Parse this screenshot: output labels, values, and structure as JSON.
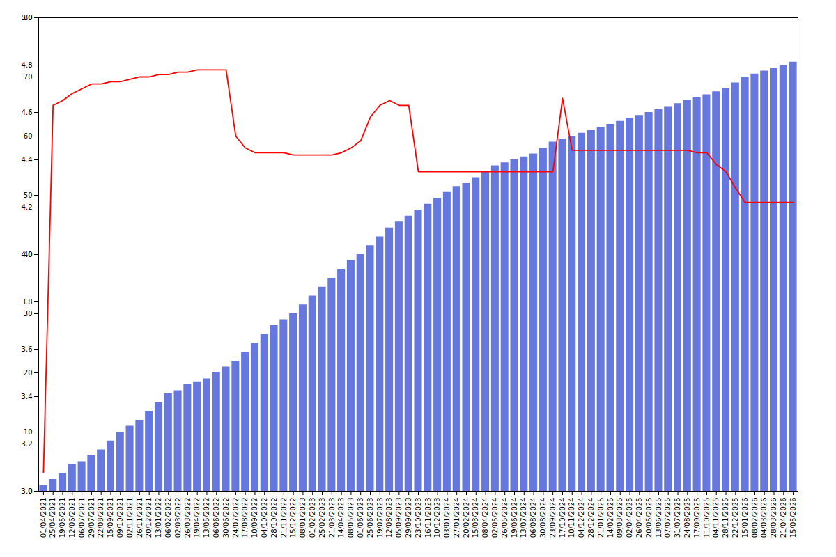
{
  "chart_data": {
    "type": "bar",
    "categories": [
      "01/04/2021",
      "25/04/2021",
      "19/05/2021",
      "12/06/2021",
      "06/07/2021",
      "29/07/2021",
      "22/08/2021",
      "15/09/2021",
      "09/10/2021",
      "02/11/2021",
      "26/11/2021",
      "20/12/2021",
      "13/01/2022",
      "06/02/2022",
      "02/03/2022",
      "26/03/2022",
      "19/04/2022",
      "13/05/2022",
      "06/06/2022",
      "30/06/2022",
      "24/07/2022",
      "17/08/2022",
      "10/09/2022",
      "04/10/2022",
      "28/10/2022",
      "21/11/2022",
      "15/12/2022",
      "08/01/2023",
      "01/02/2023",
      "25/02/2023",
      "21/03/2023",
      "14/04/2023",
      "08/05/2023",
      "01/06/2023",
      "25/06/2023",
      "19/07/2023",
      "12/08/2023",
      "05/09/2023",
      "29/09/2023",
      "23/10/2023",
      "16/11/2023",
      "10/12/2023",
      "03/01/2024",
      "27/01/2024",
      "20/02/2024",
      "15/03/2024",
      "08/04/2024",
      "02/05/2024",
      "26/05/2024",
      "19/06/2024",
      "13/07/2024",
      "06/08/2024",
      "30/08/2024",
      "23/09/2024",
      "17/10/2024",
      "10/11/2024",
      "04/12/2024",
      "28/12/2024",
      "21/01/2025",
      "14/02/2025",
      "09/03/2025",
      "02/04/2025",
      "26/04/2025",
      "20/05/2025",
      "13/06/2025",
      "07/07/2025",
      "31/07/2025",
      "24/08/2025",
      "17/09/2025",
      "11/10/2025",
      "04/11/2025",
      "28/11/2025",
      "22/12/2025",
      "15/01/2026",
      "08/02/2026",
      "04/03/2026",
      "28/03/2026",
      "21/04/2026",
      "15/05/2026"
    ],
    "series": [
      {
        "type": "bar",
        "color": "#6677dd",
        "axis": "y2",
        "values": [
          1.0,
          2.0,
          3.0,
          4.5,
          5.0,
          6.0,
          7.0,
          8.5,
          10.0,
          11.0,
          12.0,
          13.5,
          15.0,
          16.5,
          17.0,
          18.0,
          18.5,
          19.0,
          20.0,
          21.0,
          22.0,
          23.5,
          25.0,
          26.5,
          28.0,
          29.0,
          30.0,
          31.5,
          33.0,
          34.5,
          36.0,
          37.5,
          39.0,
          40.0,
          41.5,
          43.0,
          44.5,
          45.5,
          46.5,
          47.5,
          48.5,
          49.5,
          50.5,
          51.5,
          52.0,
          53.0,
          54.0,
          55.0,
          55.5,
          56.0,
          56.5,
          57.0,
          58.0,
          59.0,
          59.5,
          60.0,
          60.5,
          61.0,
          61.5,
          62.0,
          62.5,
          63.0,
          63.5,
          64.0,
          64.5,
          65.0,
          65.5,
          66.0,
          66.5,
          67.0,
          67.5,
          68.0,
          69.0,
          70.0,
          70.5,
          71.0,
          71.5,
          72.0,
          72.5
        ]
      },
      {
        "type": "line",
        "color": "#ff0000",
        "values": [
          3.08,
          4.63,
          4.65,
          4.68,
          4.7,
          4.72,
          4.72,
          4.73,
          4.73,
          4.74,
          4.75,
          4.75,
          4.76,
          4.76,
          4.77,
          4.77,
          4.78,
          4.78,
          4.78,
          4.78,
          4.5,
          4.45,
          4.43,
          4.43,
          4.43,
          4.43,
          4.42,
          4.42,
          4.42,
          4.42,
          4.42,
          4.43,
          4.45,
          4.48,
          4.58,
          4.63,
          4.65,
          4.63,
          4.63,
          4.35,
          4.35,
          4.35,
          4.35,
          4.35,
          4.35,
          4.35,
          4.35,
          4.35,
          4.35,
          4.35,
          4.35,
          4.35,
          4.35,
          4.35,
          4.66,
          4.44,
          4.44,
          4.44,
          4.44,
          4.44,
          4.44,
          4.44,
          4.44,
          4.44,
          4.44,
          4.44,
          4.44,
          4.44,
          4.43,
          4.43,
          4.38,
          4.35,
          4.28,
          4.22,
          4.22,
          4.22,
          4.22,
          4.22,
          4.22
        ]
      }
    ],
    "ylim": [
      3.0,
      5.0
    ],
    "yticks": [
      {
        "value": 3.0,
        "label": "3.0"
      },
      3.2,
      3.4,
      3.6,
      3.8,
      {
        "value": 4.0,
        "label": "4.0"
      },
      4.2,
      4.4,
      4.6,
      4.8,
      {
        "value": 5.0,
        "label": "5.0"
      }
    ],
    "y2lim": [
      0,
      80
    ],
    "y2ticks": [
      0,
      10,
      20,
      30,
      40,
      50,
      60,
      70,
      80
    ],
    "grid": false
  }
}
